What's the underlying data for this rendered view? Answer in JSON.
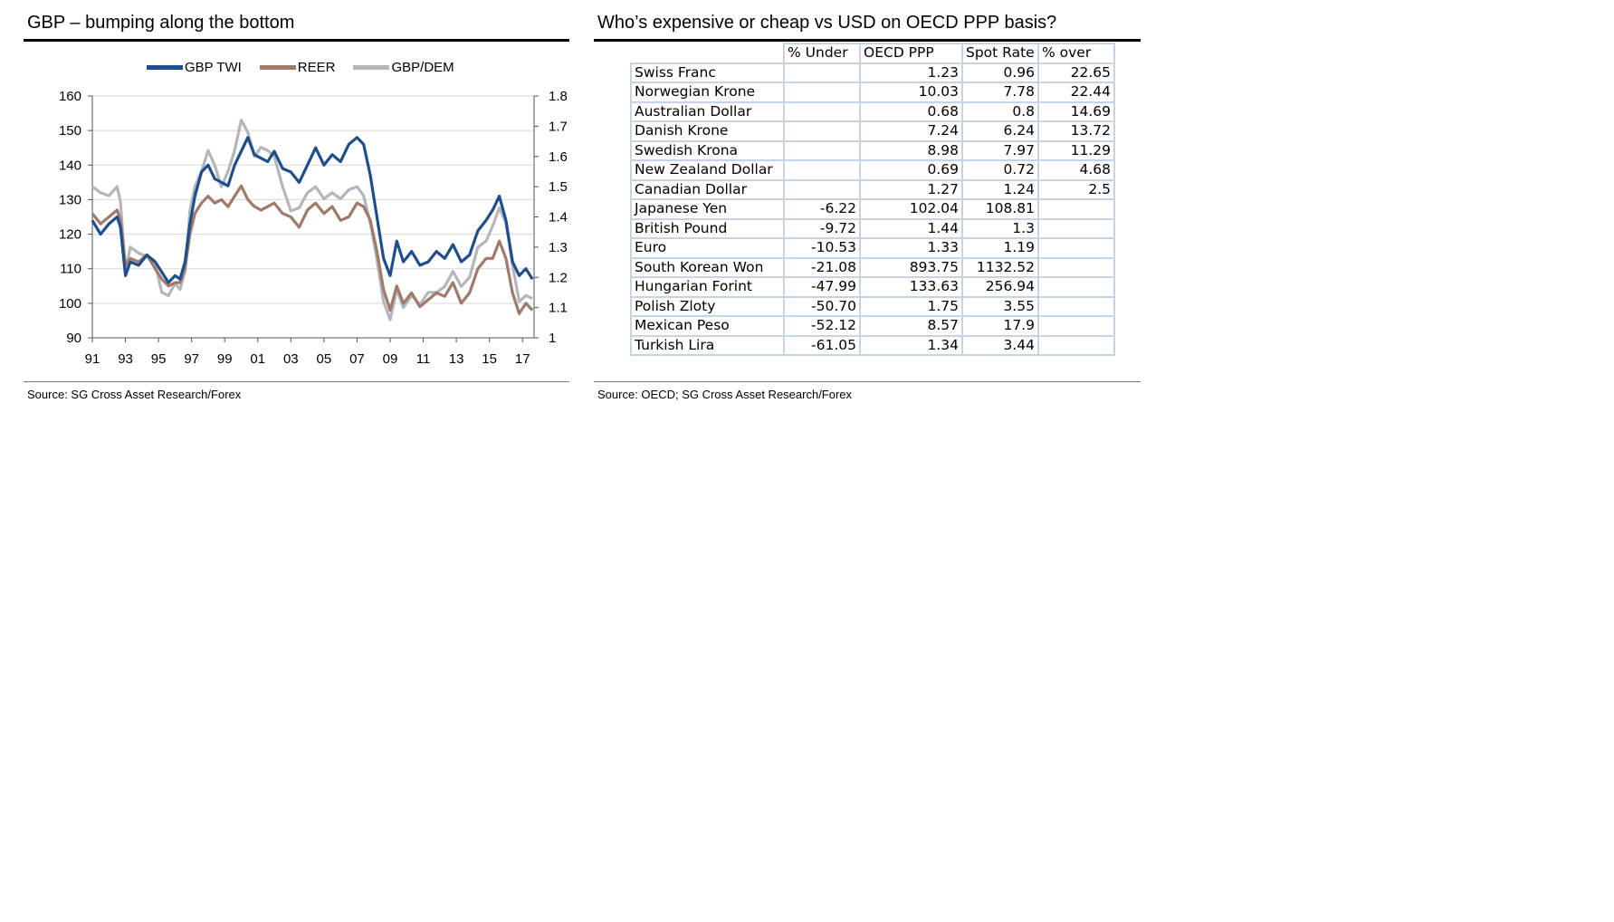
{
  "chart_panel": {
    "title": "GBP – bumping along the bottom",
    "source": "Source: SG Cross Asset Research/Forex"
  },
  "table_panel": {
    "title": "Who’s expensive or cheap vs USD on OECD PPP basis?",
    "source": "Source: OECD; SG Cross Asset Research/Forex"
  },
  "chart_data": [
    {
      "type": "line",
      "title": "GBP – bumping along the bottom",
      "legend_position": "top",
      "grid": true,
      "x_ticks": [
        "91",
        "93",
        "95",
        "97",
        "99",
        "01",
        "03",
        "05",
        "07",
        "09",
        "11",
        "13",
        "15",
        "17"
      ],
      "x_range": [
        1991,
        2017.7
      ],
      "y_left": {
        "ylim": [
          90,
          160
        ],
        "ticks": [
          90,
          100,
          110,
          120,
          130,
          140,
          150,
          160
        ]
      },
      "y_right": {
        "ylim": [
          1,
          1.8
        ],
        "ticks": [
          "1",
          "1.1",
          "1.2",
          "1.3",
          "1.4",
          "1.5",
          "1.6",
          "1.7",
          "1.8"
        ]
      },
      "series": [
        {
          "name": "GBP TWI",
          "axis": "left",
          "color": "#1f4e8c",
          "x": [
            1991.0,
            1991.5,
            1992.0,
            1992.5,
            1992.7,
            1993.0,
            1993.3,
            1993.8,
            1994.3,
            1994.8,
            1995.2,
            1995.6,
            1996.0,
            1996.3,
            1996.6,
            1996.9,
            1997.2,
            1997.6,
            1998.0,
            1998.4,
            1998.8,
            1999.2,
            1999.6,
            2000.0,
            2000.4,
            2000.8,
            2001.2,
            2001.6,
            2002.0,
            2002.5,
            2003.0,
            2003.5,
            2004.0,
            2004.5,
            2005.0,
            2005.5,
            2006.0,
            2006.5,
            2007.0,
            2007.4,
            2007.8,
            2008.2,
            2008.6,
            2009.0,
            2009.4,
            2009.8,
            2010.3,
            2010.8,
            2011.3,
            2011.8,
            2012.3,
            2012.8,
            2013.3,
            2013.8,
            2014.3,
            2014.8,
            2015.2,
            2015.6,
            2016.0,
            2016.4,
            2016.8,
            2017.2,
            2017.6
          ],
          "values": [
            124,
            120,
            123,
            125,
            122,
            108,
            112,
            111,
            114,
            112,
            109,
            106,
            108,
            107,
            112,
            123,
            131,
            138,
            140,
            136,
            135,
            134,
            140,
            144,
            148,
            143,
            142,
            141,
            144,
            139,
            138,
            135,
            140,
            145,
            140,
            143,
            141,
            146,
            148,
            146,
            137,
            125,
            113,
            108,
            118,
            112,
            115,
            111,
            112,
            115,
            113,
            117,
            112,
            114,
            121,
            124,
            127,
            131,
            124,
            112,
            108,
            110,
            107
          ]
        },
        {
          "name": "REER",
          "axis": "left",
          "color": "#a07a6b",
          "x": [
            1991.0,
            1991.5,
            1992.0,
            1992.5,
            1992.7,
            1993.0,
            1993.3,
            1993.8,
            1994.3,
            1994.8,
            1995.2,
            1995.6,
            1996.0,
            1996.3,
            1996.6,
            1996.9,
            1997.2,
            1997.6,
            1998.0,
            1998.4,
            1998.8,
            1999.2,
            1999.6,
            2000.0,
            2000.4,
            2000.8,
            2001.2,
            2001.6,
            2002.0,
            2002.5,
            2003.0,
            2003.5,
            2004.0,
            2004.5,
            2005.0,
            2005.5,
            2006.0,
            2006.5,
            2007.0,
            2007.4,
            2007.8,
            2008.2,
            2008.6,
            2009.0,
            2009.4,
            2009.8,
            2010.3,
            2010.8,
            2011.3,
            2011.8,
            2012.3,
            2012.8,
            2013.3,
            2013.8,
            2014.3,
            2014.8,
            2015.2,
            2015.6,
            2016.0,
            2016.4,
            2016.8,
            2017.2,
            2017.6
          ],
          "values": [
            126,
            123,
            125,
            127,
            124,
            111,
            113,
            112,
            114,
            110,
            107,
            105,
            106,
            106,
            110,
            120,
            126,
            129,
            131,
            129,
            130,
            128,
            131,
            134,
            130,
            128,
            127,
            128,
            129,
            126,
            125,
            122,
            127,
            129,
            126,
            128,
            124,
            125,
            129,
            128,
            124,
            115,
            104,
            98,
            105,
            100,
            103,
            99,
            101,
            103,
            102,
            106,
            100,
            103,
            110,
            113,
            113,
            118,
            113,
            103,
            97,
            100,
            98
          ]
        },
        {
          "name": "GBP/DEM",
          "axis": "right",
          "color": "#b4b6bb",
          "x": [
            1991.0,
            1991.5,
            1992.0,
            1992.5,
            1992.7,
            1993.0,
            1993.3,
            1993.8,
            1994.3,
            1994.8,
            1995.2,
            1995.6,
            1996.0,
            1996.3,
            1996.6,
            1996.9,
            1997.2,
            1997.6,
            1998.0,
            1998.4,
            1998.8,
            1999.2,
            1999.6,
            2000.0,
            2000.4,
            2000.8,
            2001.2,
            2001.6,
            2002.0,
            2002.5,
            2003.0,
            2003.5,
            2004.0,
            2004.5,
            2005.0,
            2005.5,
            2006.0,
            2006.5,
            2007.0,
            2007.4,
            2007.8,
            2008.2,
            2008.6,
            2009.0,
            2009.4,
            2009.8,
            2010.3,
            2010.8,
            2011.3,
            2011.8,
            2012.3,
            2012.8,
            2013.3,
            2013.8,
            2014.3,
            2014.8,
            2015.2,
            2015.6,
            2016.0,
            2016.4,
            2016.8,
            2017.2,
            2017.6
          ],
          "values": [
            1.5,
            1.48,
            1.47,
            1.5,
            1.45,
            1.22,
            1.3,
            1.28,
            1.27,
            1.24,
            1.15,
            1.14,
            1.18,
            1.16,
            1.22,
            1.42,
            1.5,
            1.55,
            1.62,
            1.57,
            1.5,
            1.55,
            1.62,
            1.72,
            1.68,
            1.6,
            1.63,
            1.62,
            1.6,
            1.5,
            1.42,
            1.43,
            1.48,
            1.5,
            1.46,
            1.48,
            1.46,
            1.49,
            1.5,
            1.47,
            1.38,
            1.26,
            1.12,
            1.06,
            1.16,
            1.1,
            1.14,
            1.11,
            1.15,
            1.15,
            1.17,
            1.22,
            1.17,
            1.2,
            1.3,
            1.32,
            1.37,
            1.43,
            1.38,
            1.24,
            1.12,
            1.14,
            1.13
          ]
        }
      ]
    },
    {
      "type": "table",
      "title": "Who’s expensive or cheap vs USD on OECD PPP basis?",
      "columns": [
        "",
        "% Under",
        "OECD PPP",
        "Spot Rate",
        "% over"
      ],
      "rows": [
        [
          "Swiss Franc",
          "",
          "1.23",
          "0.96",
          "22.65"
        ],
        [
          "Norwegian Krone",
          "",
          "10.03",
          "7.78",
          "22.44"
        ],
        [
          "Australian Dollar",
          "",
          "0.68",
          "0.8",
          "14.69"
        ],
        [
          "Danish Krone",
          "",
          "7.24",
          "6.24",
          "13.72"
        ],
        [
          "Swedish Krona",
          "",
          "8.98",
          "7.97",
          "11.29"
        ],
        [
          "New Zealand Dollar",
          "",
          "0.69",
          "0.72",
          "4.68"
        ],
        [
          "Canadian Dollar",
          "",
          "1.27",
          "1.24",
          "2.5"
        ],
        [
          "Japanese Yen",
          "-6.22",
          "102.04",
          "108.81",
          ""
        ],
        [
          "British Pound",
          "-9.72",
          "1.44",
          "1.3",
          ""
        ],
        [
          "Euro",
          "-10.53",
          "1.33",
          "1.19",
          ""
        ],
        [
          "South Korean Won",
          "-21.08",
          "893.75",
          "1132.52",
          ""
        ],
        [
          "Hungarian Forint",
          "-47.99",
          "133.63",
          "256.94",
          ""
        ],
        [
          "Polish Zloty",
          "-50.70",
          "1.75",
          "3.55",
          ""
        ],
        [
          "Mexican Peso",
          "-52.12",
          "8.57",
          "17.9",
          ""
        ],
        [
          "Turkish Lira",
          "-61.05",
          "1.34",
          "3.44",
          ""
        ]
      ]
    }
  ]
}
